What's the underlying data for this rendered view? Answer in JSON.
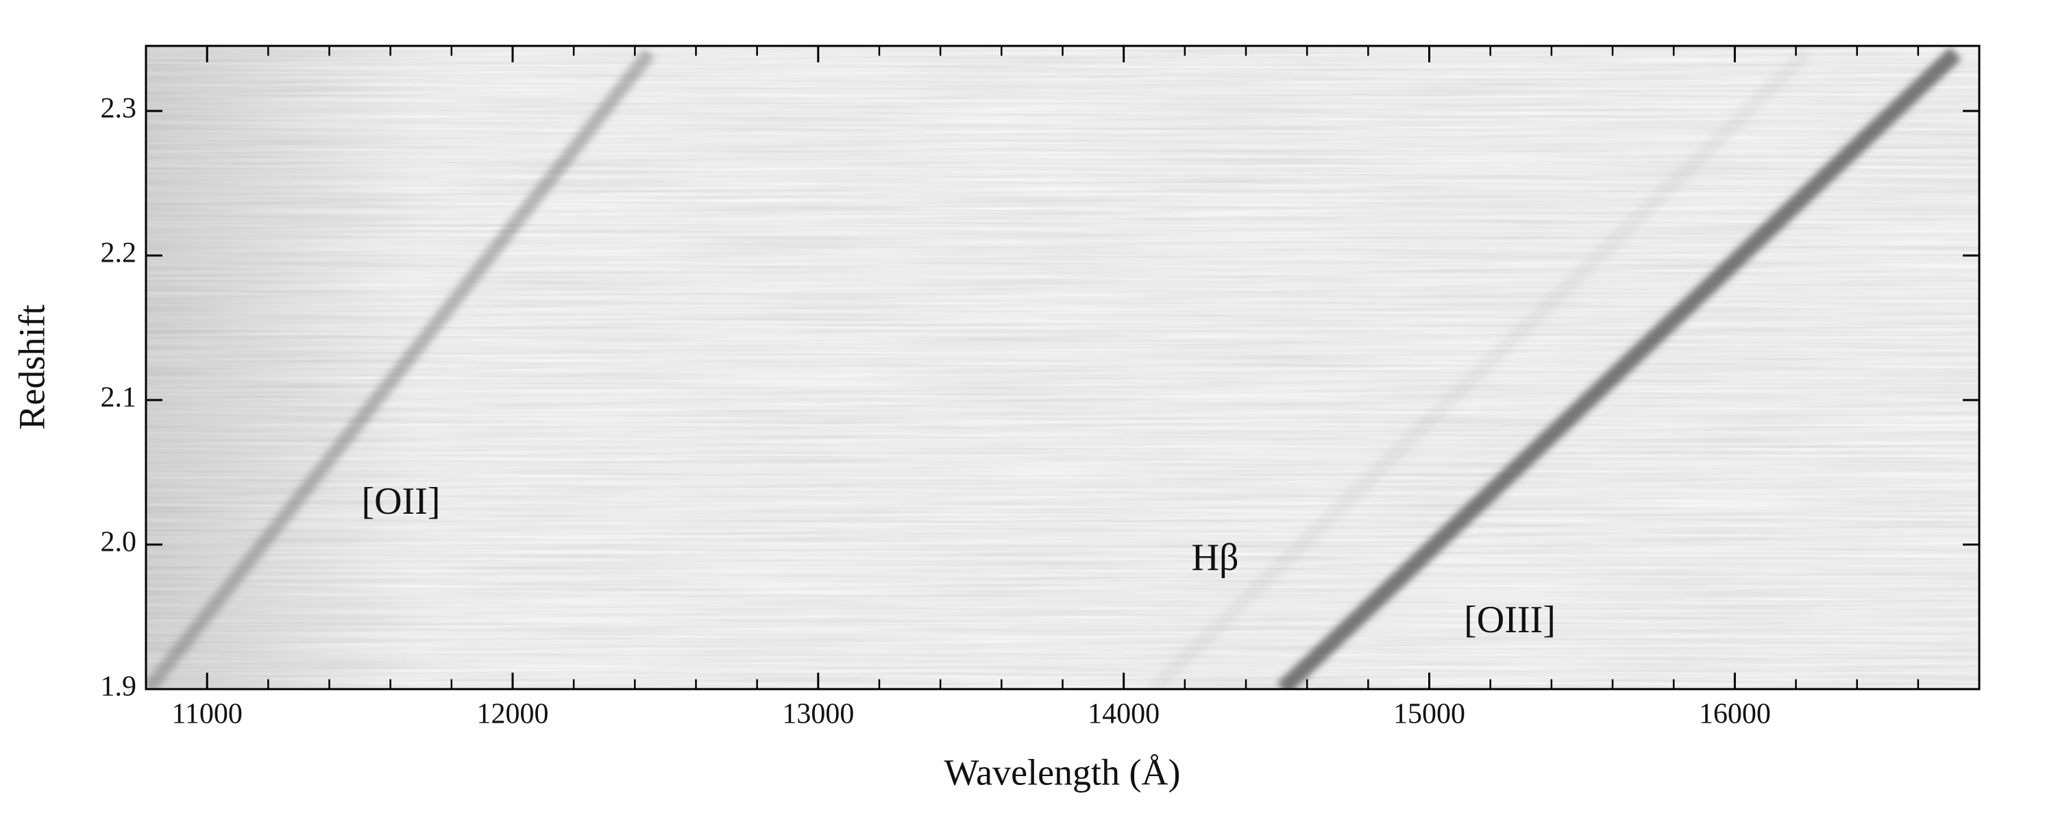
{
  "chart_data": {
    "type": "spectrum-image",
    "x_label": "Wavelength (Å)",
    "y_label": "Redshift",
    "xlim": [
      10800,
      16800
    ],
    "ylim": [
      1.9,
      2.345
    ],
    "xticks": [
      11000,
      12000,
      13000,
      14000,
      15000,
      16000
    ],
    "xticks_minor": [
      11200,
      11400,
      11600,
      11800,
      12200,
      12400,
      12600,
      12800,
      13200,
      13400,
      13600,
      13800,
      14200,
      14400,
      14600,
      14800,
      15200,
      15400,
      15600,
      15800,
      16200,
      16400,
      16600
    ],
    "yticks": [
      1.9,
      {
        "value": 2.0,
        "label": "2.0"
      },
      2.1,
      2.2,
      2.3
    ],
    "series": [
      {
        "name": "[OII]",
        "color": "#6e6e6e",
        "x": [
          10808,
          12448
        ],
        "values": [
          1.9,
          2.34
        ]
      },
      {
        "name": "Hβ",
        "color": "#9a9a9a",
        "x": [
          14097,
          16236
        ],
        "values": [
          1.9,
          2.34
        ]
      },
      {
        "name": "[OIII]",
        "color": "#505050",
        "x": [
          14520,
          16723
        ],
        "values": [
          1.9,
          2.34
        ]
      }
    ]
  }
}
